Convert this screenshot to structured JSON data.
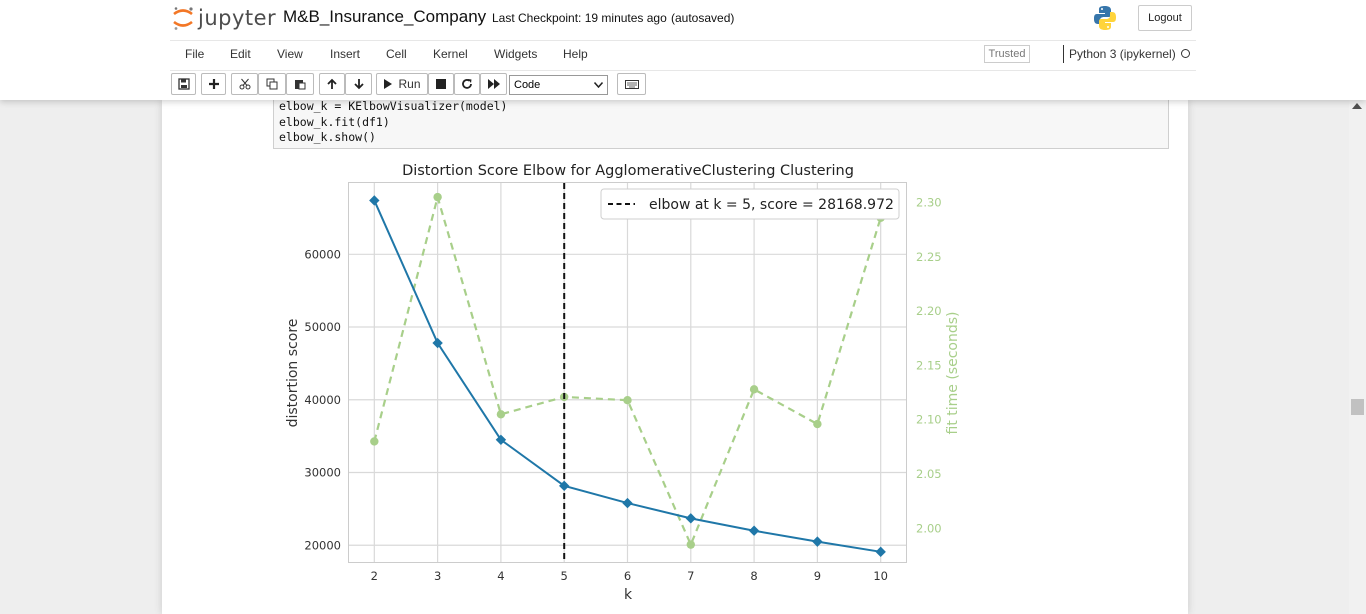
{
  "header": {
    "logo_text": "jupyter",
    "notebook_name": "M&B_Insurance_Company",
    "checkpoint": "Last Checkpoint: 19 minutes ago",
    "autosave": "(autosaved)",
    "logout_label": "Logout"
  },
  "menubar": {
    "items": [
      "File",
      "Edit",
      "View",
      "Insert",
      "Cell",
      "Kernel",
      "Widgets",
      "Help"
    ],
    "trusted_label": "Trusted",
    "kernel_label": "Python 3 (ipykernel)"
  },
  "toolbar": {
    "run_label": "Run",
    "cell_type": "Code",
    "icons": [
      "save-icon",
      "add-cell-icon",
      "cut-icon",
      "copy-icon",
      "paste-icon",
      "move-up-icon",
      "move-down-icon",
      "run-icon",
      "stop-icon",
      "restart-icon",
      "fast-forward-icon",
      "keyboard-icon"
    ]
  },
  "code_cell": {
    "lines": [
      "elbow_k = KElbowVisualizer(model)",
      "elbow_k.fit(df1)",
      "elbow_k.show()"
    ]
  },
  "chart_data": {
    "type": "line",
    "title": "Distortion Score Elbow for AgglomerativeClustering Clustering",
    "xlabel": "k",
    "ylabel": "distortion score",
    "y2label": "fit time (seconds)",
    "x": [
      2,
      3,
      4,
      5,
      6,
      7,
      8,
      9,
      10
    ],
    "xlim": [
      1.6,
      10.4
    ],
    "ylim": [
      17700,
      69800
    ],
    "y2lim": [
      1.969,
      2.318
    ],
    "yticks": [
      20000,
      30000,
      40000,
      50000,
      60000
    ],
    "y2ticks": [
      "2.00",
      "2.05",
      "2.10",
      "2.15",
      "2.20",
      "2.25",
      "2.30"
    ],
    "series": [
      {
        "values": [
          67400,
          47800,
          34500,
          28169,
          25800,
          23700,
          22000,
          20500,
          19100
        ],
        "color": "#1f77a8",
        "axis": "left"
      },
      {
        "values": [
          2.08,
          2.305,
          2.105,
          2.121,
          2.118,
          1.985,
          2.128,
          2.096,
          2.286
        ],
        "color": "#a8cf8a",
        "axis": "right"
      }
    ],
    "elbow": {
      "k": 5,
      "legend": "elbow at k = 5, score = 28168.972"
    },
    "grid": true,
    "legend_position": "top-right"
  }
}
